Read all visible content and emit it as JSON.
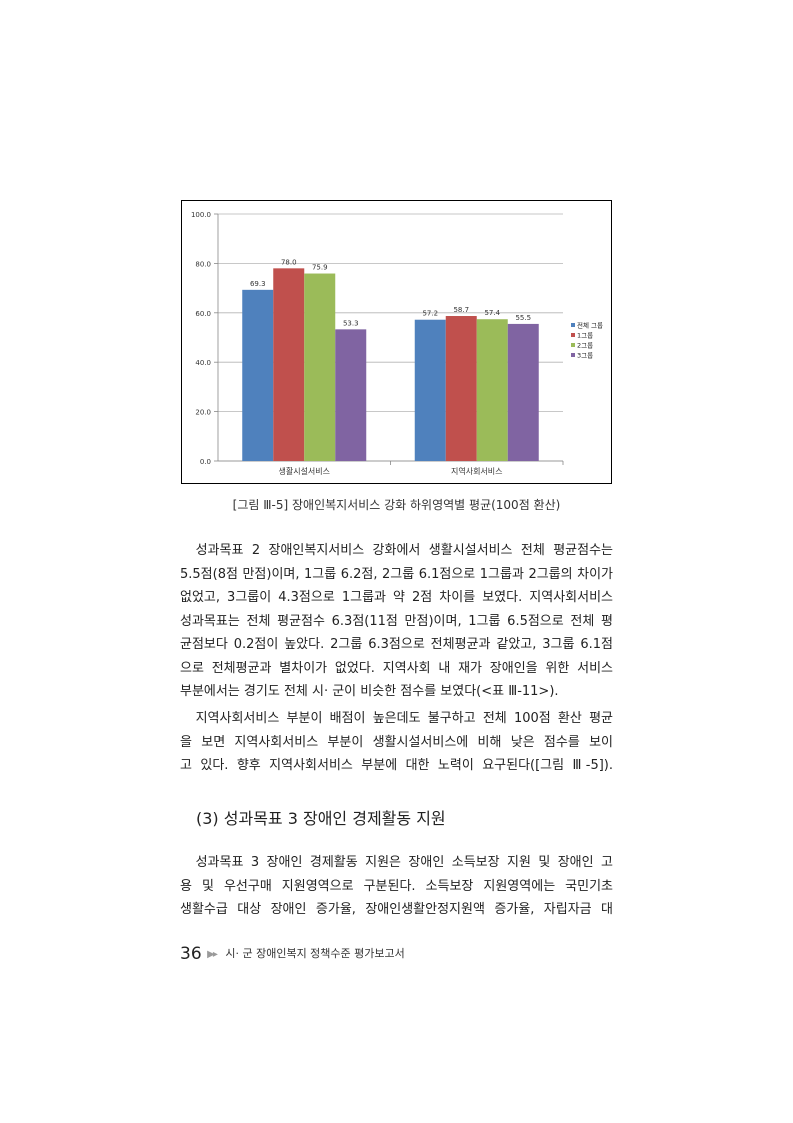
{
  "chart_data": {
    "type": "bar",
    "categories": [
      "생활시설서비스",
      "지역사회서비스"
    ],
    "series": [
      {
        "name": "전체 그룹",
        "color": "#4f81bd",
        "values": [
          69.3,
          57.2
        ]
      },
      {
        "name": "1그룹",
        "color": "#c0504d",
        "values": [
          78.0,
          58.7
        ]
      },
      {
        "name": "2그룹",
        "color": "#9bbb59",
        "values": [
          75.9,
          57.4
        ]
      },
      {
        "name": "3그룹",
        "color": "#8064a2",
        "values": [
          53.3,
          55.5
        ]
      }
    ],
    "ylim": [
      0,
      100
    ],
    "yticks": [
      "0.0",
      "20.0",
      "40.0",
      "60.0",
      "80.0",
      "100.0"
    ],
    "grid": true,
    "legend": "right",
    "title": "",
    "xlabel": "",
    "ylabel": ""
  },
  "caption": "[그림 Ⅲ-5] 장애인복지서비스 강화 하위영역별 평균(100점 환산)",
  "paragraph1": [
    "성과목표 2 장애인복지서비스 강화에서 생활시설서비스 전체 평균점수는",
    "5.5점(8점 만점)이며, 1그룹 6.2점, 2그룹 6.1점으로 1그룹과 2그룹의 차이가",
    "없었고, 3그룹이 4.3점으로 1그룹과 약 2점 차이를 보였다. 지역사회서비스",
    "성과목표는 전체 평균점수 6.3점(11점 만점)이며, 1그룹 6.5점으로 전체 평",
    "균점보다 0.2점이 높았다. 2그룹 6.3점으로 전체평균과 같았고, 3그룹 6.1점",
    "으로 전체평균과 별차이가 없었다. 지역사회 내 재가 장애인을 위한 서비스",
    "부분에서는 경기도 전체 시· 군이 비슷한 점수를 보였다(<표 Ⅲ-11>)."
  ],
  "paragraph2": [
    "지역사회서비스 부분이 배점이 높은데도 불구하고 전체 100점 환산 평균",
    "을 보면 지역사회서비스 부분이 생활시설서비스에 비해 낮은 점수를 보이",
    "고 있다. 향후 지역사회서비스 부분에 대한 노력이 요구된다([그림 Ⅲ-5])."
  ],
  "section_heading": "(3) 성과목표 3 장애인 경제활동 지원",
  "paragraph3": [
    "성과목표 3 장애인 경제활동 지원은 장애인 소득보장 지원 및 장애인 고",
    "용 및 우선구매 지원영역으로 구분된다. 소득보장 지원영역에는 국민기초",
    "생활수급 대상 장애인 증가율, 장애인생활안정지원액 증가율, 자립자금 대"
  ],
  "footer": {
    "page_number": "36",
    "arrow_icon": "double-arrow-right-icon",
    "title": "시· 군 장애인복지 정책수준 평가보고서"
  }
}
